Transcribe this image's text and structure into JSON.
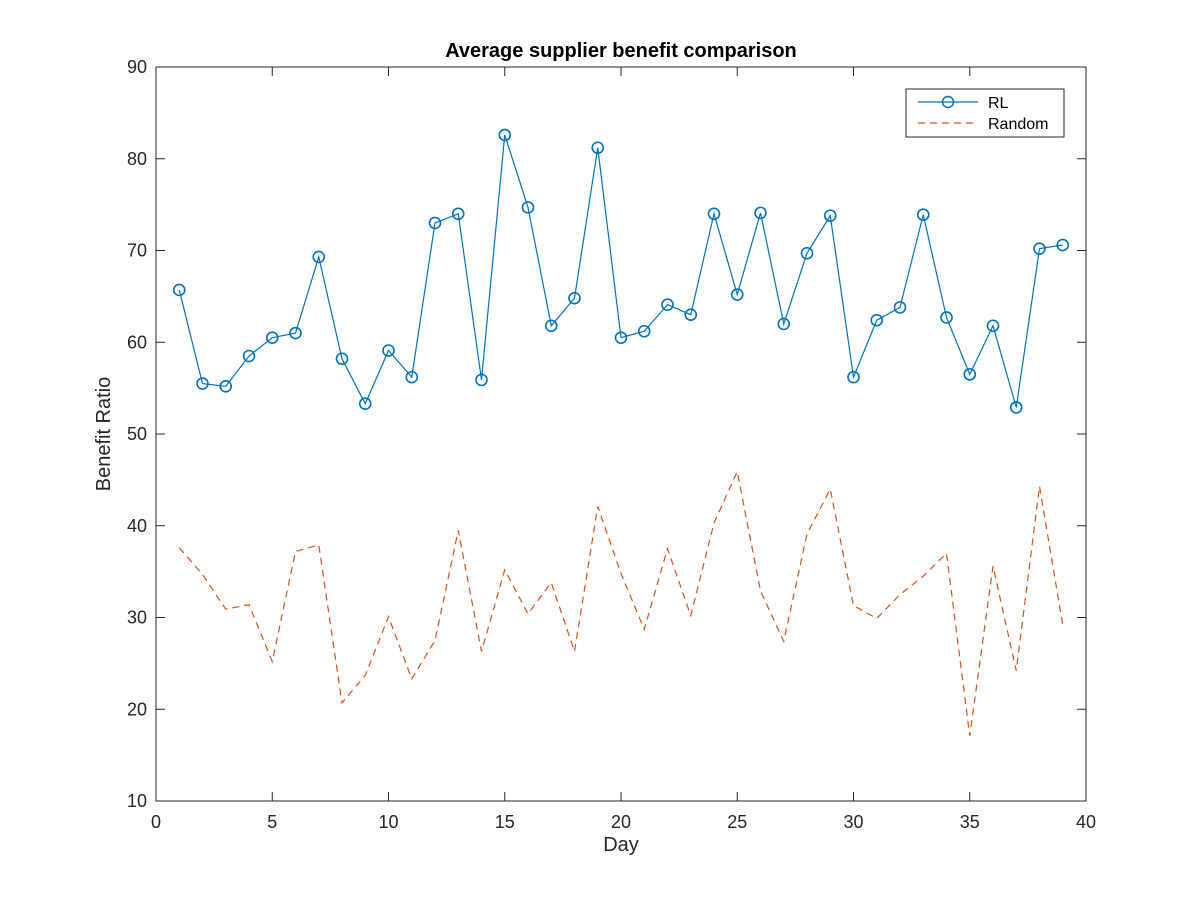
{
  "chart_data": {
    "type": "line",
    "title": "Average supplier benefit comparison",
    "xlabel": "Day",
    "ylabel": "Benefit Ratio",
    "xlim": [
      0,
      40
    ],
    "ylim": [
      10,
      90
    ],
    "xticks": [
      0,
      5,
      10,
      15,
      20,
      25,
      30,
      35,
      40
    ],
    "yticks": [
      10,
      20,
      30,
      40,
      50,
      60,
      70,
      80,
      90
    ],
    "grid": false,
    "legend_position": "top-right",
    "x": [
      1,
      2,
      3,
      4,
      5,
      6,
      7,
      8,
      9,
      10,
      11,
      12,
      13,
      14,
      15,
      16,
      17,
      18,
      19,
      20,
      21,
      22,
      23,
      24,
      25,
      26,
      27,
      28,
      29,
      30,
      31,
      32,
      33,
      34,
      35,
      36,
      37,
      38,
      39
    ],
    "series": [
      {
        "name": "RL",
        "color": "#0072BD",
        "line_style": "solid",
        "marker": "circle",
        "values": [
          65.7,
          55.5,
          55.2,
          58.5,
          60.5,
          61.0,
          69.3,
          58.2,
          53.3,
          59.1,
          56.2,
          73.0,
          74.0,
          55.9,
          82.6,
          74.7,
          61.8,
          64.8,
          81.2,
          60.5,
          61.2,
          64.1,
          63.0,
          74.0,
          65.2,
          74.1,
          62.0,
          69.7,
          73.8,
          56.2,
          62.4,
          63.8,
          73.9,
          62.7,
          56.5,
          61.8,
          52.9,
          70.2,
          70.6
        ]
      },
      {
        "name": "Random",
        "color": "#D95319",
        "line_style": "dashed",
        "marker": "none",
        "values": [
          37.6,
          34.7,
          30.9,
          31.4,
          25.2,
          37.2,
          37.9,
          20.7,
          23.7,
          30.1,
          23.3,
          27.5,
          39.5,
          26.3,
          35.2,
          30.4,
          33.8,
          26.3,
          42.1,
          34.8,
          28.7,
          37.5,
          30.2,
          40.3,
          45.9,
          32.9,
          27.4,
          39.1,
          44.0,
          31.3,
          29.9,
          32.5,
          34.5,
          37.0,
          17.1,
          35.6,
          24.2,
          44.3,
          29.2
        ]
      }
    ]
  }
}
